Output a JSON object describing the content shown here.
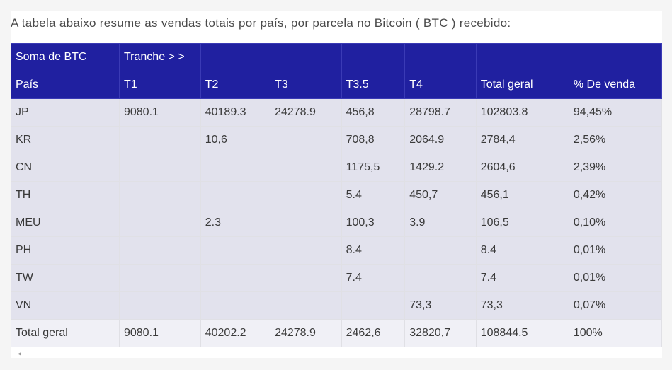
{
  "caption": "A tabela abaixo resume as vendas totais por país, por parcela no Bitcoin ( BTC ) recebido:",
  "header_row1": [
    "Soma de BTC",
    "Tranche > >",
    "",
    "",
    "",
    "",
    "",
    ""
  ],
  "header_row2": [
    "País",
    "T1",
    "T2",
    "T3",
    "T3.5",
    "T4",
    "Total geral",
    "% De venda"
  ],
  "rows": [
    [
      "JP",
      "9080.1",
      "40189.3",
      "24278.9",
      "456,8",
      "28798.7",
      "102803.8",
      "94,45%"
    ],
    [
      "KR",
      "",
      "10,6",
      "",
      "708,8",
      "2064.9",
      "2784,4",
      "2,56%"
    ],
    [
      "CN",
      "",
      "",
      "",
      "1175,5",
      "1429.2",
      "2604,6",
      "2,39%"
    ],
    [
      "TH",
      "",
      "",
      "",
      "5.4",
      "450,7",
      "456,1",
      "0,42%"
    ],
    [
      "MEU",
      "",
      "2.3",
      "",
      "100,3",
      "3.9",
      "106,5",
      "0,10%"
    ],
    [
      "PH",
      "",
      "",
      "",
      "8.4",
      "",
      "8.4",
      "0,01%"
    ],
    [
      "TW",
      "",
      "",
      "",
      "7.4",
      "",
      "7.4",
      "0,01%"
    ],
    [
      "VN",
      "",
      "",
      "",
      "",
      "73,3",
      "73,3",
      "0,07%"
    ]
  ],
  "total_row": [
    "Total geral",
    "9080.1",
    "40202.2",
    "24278.9",
    "2462,6",
    "32820,7",
    "108844.5",
    "100%"
  ],
  "foot_marker": "◂",
  "colors": {
    "header_bg": "#2020a0",
    "header_text": "#ffffff",
    "row_bg": "#e2e2ed",
    "total_bg": "#f0f0f6",
    "border": "#e0e0e5",
    "text": "#3a3a3a"
  }
}
